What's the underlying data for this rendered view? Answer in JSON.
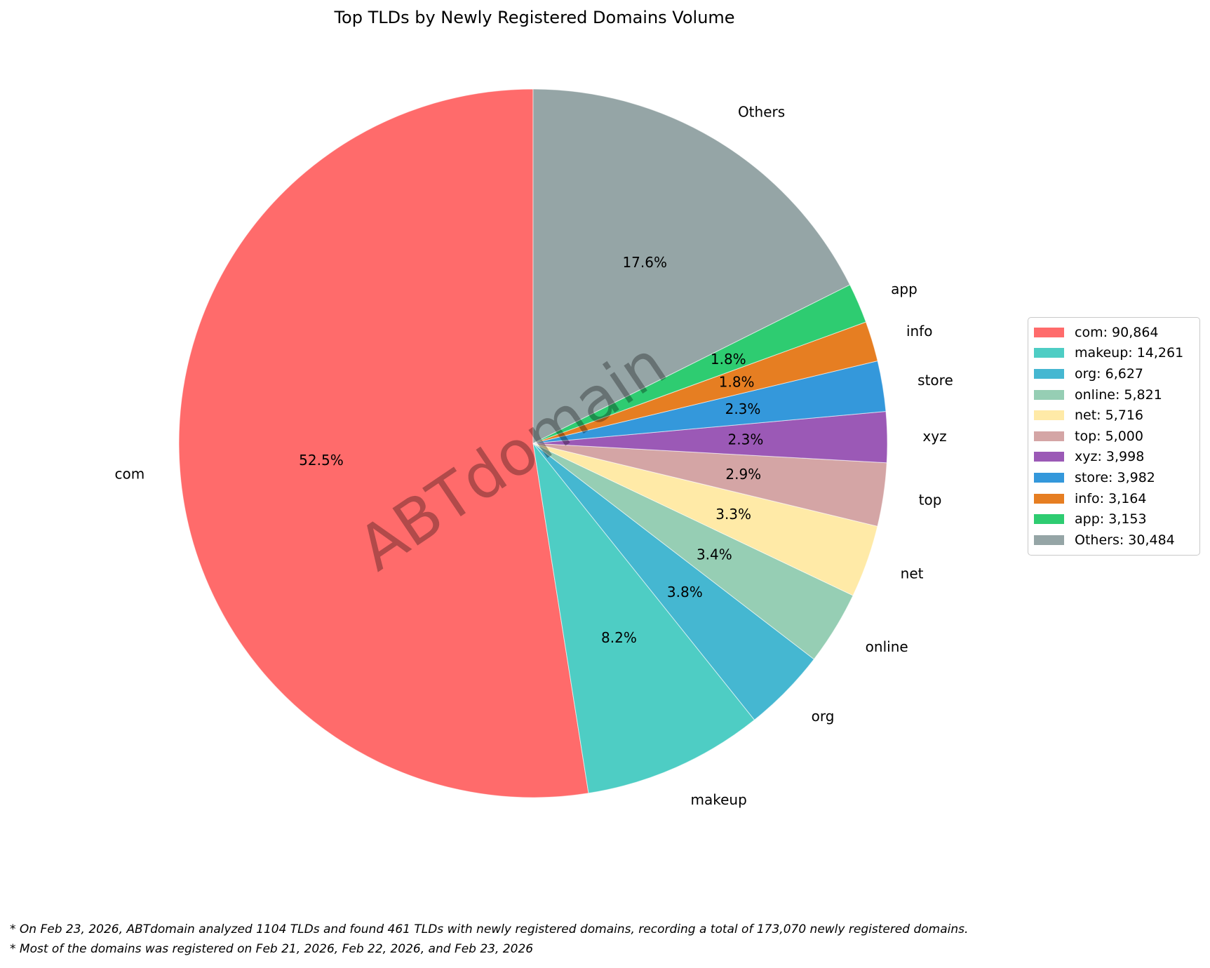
{
  "title": "Top TLDs by Newly Registered Domains Volume",
  "watermark": "ABTdomain",
  "chart_data": {
    "type": "pie",
    "title": "Top TLDs by Newly Registered Domains Volume",
    "total": 173070,
    "start_angle_deg": 90,
    "direction": "counterclockwise",
    "legend_position": "right",
    "label_distance": 1.1,
    "pct_distance": 0.6,
    "slices": [
      {
        "label": "com",
        "value": 90864,
        "value_display": "90,864",
        "pct_label": "52.5%",
        "color": "#FF6B6B"
      },
      {
        "label": "makeup",
        "value": 14261,
        "value_display": "14,261",
        "pct_label": "8.2%",
        "color": "#4ECDC4"
      },
      {
        "label": "org",
        "value": 6627,
        "value_display": "6,627",
        "pct_label": "3.8%",
        "color": "#45B7D1"
      },
      {
        "label": "online",
        "value": 5821,
        "value_display": "5,821",
        "pct_label": "3.4%",
        "color": "#96CEB4"
      },
      {
        "label": "net",
        "value": 5716,
        "value_display": "5,716",
        "pct_label": "3.3%",
        "color": "#FFEAA7"
      },
      {
        "label": "top",
        "value": 5000,
        "value_display": "5,000",
        "pct_label": "2.9%",
        "color": "#D4A5A5"
      },
      {
        "label": "xyz",
        "value": 3998,
        "value_display": "3,998",
        "pct_label": "2.3%",
        "color": "#9B59B6"
      },
      {
        "label": "store",
        "value": 3982,
        "value_display": "3,982",
        "pct_label": "2.3%",
        "color": "#3498DB"
      },
      {
        "label": "info",
        "value": 3164,
        "value_display": "3,164",
        "pct_label": "1.8%",
        "color": "#E67E22"
      },
      {
        "label": "app",
        "value": 3153,
        "value_display": "3,153",
        "pct_label": "1.8%",
        "color": "#2ECC71"
      },
      {
        "label": "Others",
        "value": 30484,
        "value_display": "30,484",
        "pct_label": "17.6%",
        "color": "#95A5A6"
      }
    ]
  },
  "legend": {
    "separator": ": "
  },
  "notes": {
    "line1": "* On Feb 23, 2026, ABTdomain analyzed 1104 TLDs and found 461 TLDs with newly registered domains, recording a total of 173,070 newly registered domains.",
    "line2": "* Most of the domains was registered on Feb 21, 2026, Feb 22, 2026, and Feb 23, 2026"
  }
}
